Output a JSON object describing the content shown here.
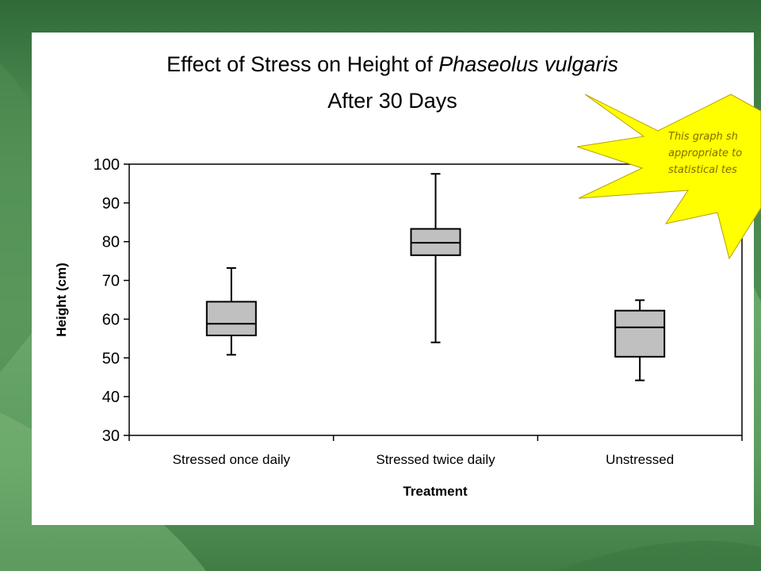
{
  "chart_data": {
    "type": "box",
    "title_line1_prefix": "Effect of Stress on Height of ",
    "title_line1_italic": "Phaseolus vulgaris",
    "title_line2": "After 30 Days",
    "xlabel": "Treatment",
    "ylabel": "Height (cm)",
    "ylim": [
      30,
      100
    ],
    "yticks": [
      "30",
      "40",
      "50",
      "60",
      "70",
      "80",
      "90",
      "100"
    ],
    "categories": [
      "Stressed once daily",
      "Stressed twice daily",
      "Unstressed"
    ],
    "boxes": [
      {
        "category": "Stressed once daily",
        "min": 50.8,
        "q1": 55.8,
        "median": 58.8,
        "q3": 64.5,
        "max": 73.2
      },
      {
        "category": "Stressed twice daily",
        "min": 54,
        "q1": 76.5,
        "median": 79.7,
        "q3": 83.3,
        "max": 97.5
      },
      {
        "category": "Unstressed",
        "min": 44.2,
        "q1": 50.3,
        "median": 57.9,
        "q3": 62.2,
        "max": 64.9
      }
    ],
    "box_fill": "#c0c0c0",
    "grid": false,
    "legend": "none"
  },
  "callout": {
    "lines": [
      "This graph sh",
      "appropriate to",
      "statistical tes"
    ],
    "fill": "#ffff00",
    "stroke": "#b8a000"
  },
  "colors": {
    "slide_background": "#5b9a5e",
    "panel_background": "#ffffff"
  }
}
